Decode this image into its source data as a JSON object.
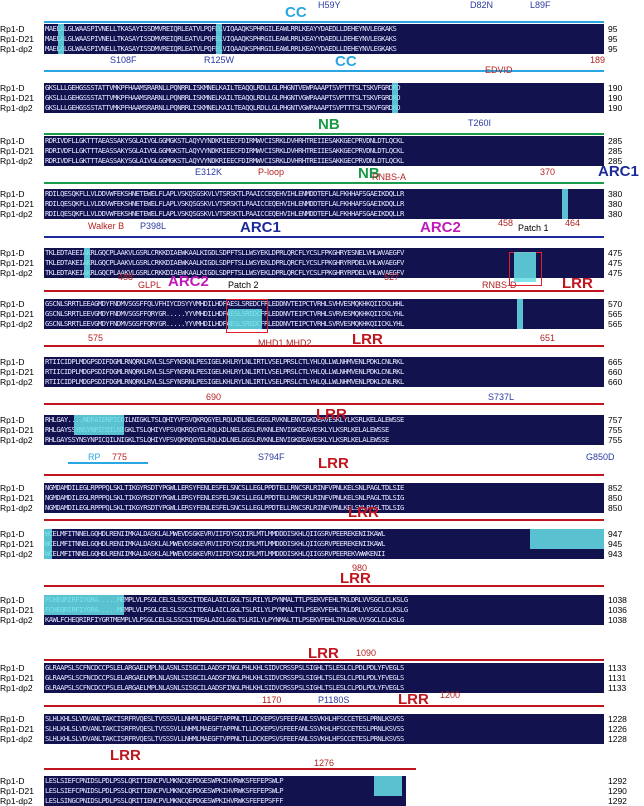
{
  "sequence_names": [
    "Rp1-D",
    "Rp1-D21",
    "Rp1-dp2"
  ],
  "colors": {
    "alignment_background": "#12124f",
    "identity_highlight": "#66e0e6",
    "cc_domain": "#2aa6e0",
    "nb_domain": "#1a9a4a",
    "arc1_domain": "#1d2a9a",
    "arc2_domain": "#c01ab8",
    "lrr_domain": "#c0151e",
    "mutation_blue": "#2a3aa0",
    "motif_red": "#b22222",
    "motif_brown": "#c46a1a"
  },
  "blocks": [
    {
      "seqs": [
        "MAELALGLWAASPIVNELLTKASAYISSDMVREIQRLEATVLPQFELVIQAAQKSPHRGILEAWLRRLKEAYYDAEDLLDEHEYNVLEGKAKS",
        "MAELALGLWAASPIVNELLTKASAYISSDMVREIQRLEATVLPQFELVIQAAQKSPHRGILEAWLRRLKEAYYDAEDLLDEHEYNVLEGKAKS",
        "MAELALGLWAASPIVNELLTKASAYISSDMVREIQRLEATVLPQFELVIQAAQKSPHRGILEAWLRRLKEAYYDAEDLLDEHEYNVLEGKAKS"
      ],
      "ends": [
        "95",
        "95",
        "95"
      ]
    },
    {
      "seqs": [
        "GKSLLLGEHGSSSTATTVMKPFHAAMSRARNLLPQNRRLISKMNELKAILTEAQQLRDLLGLPHGNTVEWPAAAPTSVPTTTSLTSKVFGRDRD",
        "GKSLLLGEHGSSSTATTVMKPFHAAMSRARNLLPQNRRLISKMNELKAILTEAQQLRDLLGLPHGNTVGWPAAAPTSVPTTTSLTSKVFGRDRD",
        "GKSLLLGEHGSSSTATTVMKPFHAAMSRARNLLPQNRRLISKMNELKAILTEAQQLRDLLGLPHGNTVGWPAAAPTSVPTTTSLTSKVFGRDRD"
      ],
      "ends": [
        "190",
        "190",
        "190"
      ]
    },
    {
      "seqs": [
        "RDRIVDFLLGKTTTAEASSAKYSGLAIVGLGGMGKSTLAQYVYNDKRIEECFDIRMWVCISRKLDVHRHTREIIESAKKGECPRVDNLDTLQCKL",
        "RDRIVDFLLGKTTTAEASSAKYSGLAIVGLGGMGKSTLAQYVYNDKRIEECFDIRMWVCISRKLDVHRHTREIIESAKKGECPRVDNLDTLQCKL",
        "RDRIVDFLLGKTTTAEASSAKYSGLAIVGLGGMGKSTLAQYVYNDKRIEECFDIRMWVCISRKLDVHRHTREIIESAKKGECPRVDNLDTLQCKL"
      ],
      "ends": [
        "285",
        "285",
        "285"
      ]
    },
    {
      "seqs": [
        "RDILQESQKFLLVLDDVWFEKSHNETEWELFLAPLVSKQSGSKVLVTSRSKTLPAAICCEQEHVIHLENMDDTEFLALFKHHAFSGAEIKDQLLR",
        "RDILQESQKFLLVLDDVWFEKSHNETEWELFLAPLVSKQSGSKVLVTSRSKTLPAAICCEQEHVIHLENMDDTEFLALFKHHAFSGAEIKDQLLR",
        "RDILQESQKFLLVLDDVWFEKSHNETEWELFLAPLVSKQSGSKVLVTSRSKTLPAAICCEQEHVIHLENMDDTEFLALFKHHAFSGAEIKDQLLR"
      ],
      "ends": [
        "380",
        "380",
        "380"
      ]
    },
    {
      "seqs": [
        "TKLEDTAEEIAKRLGQCPLAAKVLGSRLCRKKDIAEWKAALKIGDLSDPFTSLLWSYEKLDPRLQRCFLYCSLFPKGHRYESNELVHLWVAEGFV",
        "TKLEDTAKEIAKRLGQCPLAAKVLGSRLCRKKDIAEWKAALKIGDLSDPFTSLLWSYEKLDPRLQRCFLYCSLFPKGHRYRPDELVHLWVAEGFV",
        "TKLEDTAKEIAKRLGQCPLAAKVLGSRLCRKKDIAEWKAALKIGDLSDPFTSLLWSYEKLDPRLQRCFLYCSLFPKGHRYRPDELVHLWVAEGFV"
      ],
      "ends": [
        "475",
        "475",
        "475"
      ]
    },
    {
      "seqs": [
        "GSCNLSRRTLEEAGMDYFNDMVSGSFFQLVFHIYCDSYYVMHDILHDFAESLSREDCFRLEDDNVTEIPCTVRHLSVHVESMQKHKQIICKLHHL",
        "GSCNLSRRTLEEVGMDYFNDMVSGSFFQRYGR.....YYVMHDILHDFAESLSREDCFRLEDDNVTEIPCTVRHLSVRVESMQKHKQIICKLYHL",
        "GSCNLSRRTLEEVGMDYFNDMVSGSFFQRYGR.....YYVMHDILHDFAESLSREDCFRLEDDNVTEIPCTVRHLSVRVESMQKHKQIICKLYHL"
      ],
      "ends": [
        "570",
        "565",
        "565"
      ]
    },
    {
      "seqs": [
        "RTIICIDPLMDGPSDIFDGMLRNQRKLRVLSLSFYNSKNLPESIGELKHLRYLNLIRTLVSELPRSLCTLYHLQLLWLNHMVENLPDKLCNLRKL",
        "RTIICIDPLMDGPSDIFDGMLRNQRKLRVLSLSFYNSRNLPESIGELKHLRYLNLIRTLVSELPRSLCTLYHLQLLWLNHMVENLPDKLCNLRKL",
        "RTIICIDPLMDGPSDIFDGMLRNQRKLRVLSLSFYNSRNLPESIGELKHLRYLNLIRTLVSELPRSLCTLYHLQLLWLNHMVENLPDKLCNLRKL"
      ],
      "ends": [
        "665",
        "660",
        "660"
      ]
    },
    {
      "seqs": [
        "RHLGAY....NDFAIENPICQILNIGKLTSLQHIYVFSVQKRQGYELRQLKDLNELGGSLRVKNLENVIGKDEAVESKLYLKSRLKELALEWSSE",
        "RHLGAYSSYNSYNPICQILNIGKLTSLQHIYVFSVQKRQGYELRQLKDLNELGGSLRVKNLENVIGKDEAVESKLYLKSRLKELALEWSSE",
        "RHLGAYSSYNSYNPICQILNIGKLTSLQHIYVFSVQKRQGYELRQLKDLNELGGSLRVKNLENVIGKDEAVESKLYLKSRLKELALEWSSE"
      ],
      "ends": [
        "757",
        "755",
        "755"
      ]
    },
    {
      "seqs": [
        "NGMDAMDILEGLRPPPQLSKLTIKGYRSDTYPGWLLERSYFENLESFELSNCSLLEGLPPDTELLRNCSRLRINFVPNLKELSNLPAGLTDLSIE",
        "NGMDAMDILEGLRPPPQLSKLTIKGYRSDTYPGWLLERSYFENLESFELSNCSLLEGLPPDTELLRNCSRLRINFVPNLKELSNLPAGLTDLSIG",
        "NGMDAMDILEGLRPPPQLSKLTIKGYRSDTYPGWLLERSYFENLESFELSNCSLLEGLPPDTELLRNCSRLRINFVPNLKELSNLPAGLTDLSIG"
      ],
      "ends": [
        "852",
        "850",
        "850"
      ]
    },
    {
      "seqs": [
        "WCELMFITNNELGQHDLRENIIMKALDASKLALMWEVDSGKEVRVIIFDYSQIIRLMTLMMDDDISKHLQIIGSRVPEEREKENIIKAWL",
        "WCELMFITNNELGQHDLRENIIMKALDASKLALMWEVDSGKEVRVIIFDYSQIIRLMTLMMDDDISKHLQIIGSRVPEEREKENIIKAWL",
        "WCELMFITNNELGQHDLRENIIMKALDASKLALMWEVDSGKEVRVIIFDYSQIIRLMTLMMDDDISKHLQIIGSRVPEEREKVWWKENII"
      ],
      "ends": [
        "947",
        "945",
        "943"
      ]
    },
    {
      "seqs": [
        "FCHEQRIRFIYGRA.....MEMPLVLPSGLCELSLSSCSITDEALAICLGGLTSLRILYLPYNMALTTLPSEKVFEHLTKLDRLVVSGCLCLKSLG",
        "FCHEQRIRFIYGRA.....MEMPLVLPSGLCELSLSSCSITDEALAICLGGLTSLRILYLPYNMALTTLPSEKVFEHLTKLDRLVVSGCLCLKSLG",
        "KAWLFCHEQRIRFIYGRTMEMPLVLPSGLCELSLSSCSITDEALAICLGGLTSLRILYLPYNMALTTLPSEKVFEHLTKLDRLVVSGCLCLKSLG"
      ],
      "ends": [
        "1038",
        "1036",
        "1038"
      ]
    },
    {
      "seqs": [
        "GLRAAPSLSCFNCDCCPSLELARGAELMPLNLASNLSISGCILAADSFINGLPHLKHLSIDVCRSSPSLSIGHLTSLESLCLPDLPDLYFVEGLS",
        "GLRAAPSLSCFNCDCCPSLELARGAELMPLNLASNLSISGCILAADSFINGLPHLKHLSIDVCRSSPSLSIGHLTSLESLCLPDLPDLYFVEGLS",
        "GLRAAPSLSCFNCDCCPSLELARGAELMPLNLASNLSISGCILAADSFINGLPHLKHLSIDVCRSSPSLSIGHLTSLESLCLPDLPDLYFVEGLS"
      ],
      "ends": [
        "1133",
        "1131",
        "1133"
      ]
    },
    {
      "seqs": [
        "SLHLKHLSLVDVANLTAKCISRFRVQESLTVSSSVLLNHMLMAEGFTAPPNLTLLDCKEPSVSFEEFANLSSVKHLHFSCCETESLPRNLKSVSS",
        "SLHLKHLSLVDVANLTAKCISRFRVQESLTVSSSVLLNHMLMAEGFTAPPNLTLLDCKEPSVSFEEFANLSSVKHLHFSCCETESLPRNLKSVSS",
        "SLHLKHLSLVDVANLTAKCISRFRVQESLTVSSSVLLNHMLMAEGFTVPPNLTLLDCKEPSVSFEEFANLSSVKHLHFSCCETESLPRNLKSVSS"
      ],
      "ends": [
        "1228",
        "1226",
        "1228"
      ]
    },
    {
      "seqs": [
        "LESLSIEFCPNIDSLPDLPSSLQRITIENCPVLMKNCQEPDGESWPKIHVRWKSFEFEPSWLP",
        "LESLSIEFCPNIDSLPDLPSSLQRITIENCPVLMKNCQEPDGESWPKIHVRWKSFEFEPSWLP",
        "LESLSINGCPNIDSLPDLPSSLQRITIENCPVLMKNCQEPDGESWPKIHVRWKSFEFEPSFFF"
      ],
      "ends": [
        "1292",
        "1290",
        "1292"
      ]
    }
  ],
  "annotations": {
    "cc_1": "CC",
    "cc_2": "CC",
    "nb_1": "NB",
    "nb_2": "NB",
    "arc1_1": "ARC1",
    "arc1_2": "ARC1",
    "arc2_1": "ARC2",
    "arc2_2": "ARC2",
    "lrr": [
      "LRR",
      "LRR",
      "LRR",
      "LRR",
      "LRR",
      "LRR",
      "LRR",
      "LRR",
      "LRR",
      "LRR"
    ],
    "h59y": "H59Y",
    "d82n": "D82N",
    "l89f": "L89F",
    "s108f": "S108F",
    "r125w": "R125W",
    "edvid": "EDVID",
    "n189": "189",
    "t260i": "T260I",
    "e312k": "E312K",
    "ploop": "P-loop",
    "rnbsa": "RNBS-A",
    "n370": "370",
    "walkerb": "Walker B",
    "p398l": "P398L",
    "n458": "458",
    "patch1": "Patch 1",
    "n464": "464",
    "n488": "488",
    "glpl": "GLPL",
    "patch2": "Patch 2",
    "n527": "527",
    "rnbsd": "RNBS-D",
    "n575": "575",
    "mhd": "MHD1 MHD2",
    "n651": "651",
    "n690": "690",
    "s737l": "S737L",
    "rp": "RP",
    "n775": "775",
    "s794f": "S794F",
    "g850d": "G850D",
    "n980": "980",
    "n1090": "1090",
    "n1170": "1170",
    "p1180s": "P1180S",
    "n1200": "1200",
    "n1276": "1276"
  }
}
